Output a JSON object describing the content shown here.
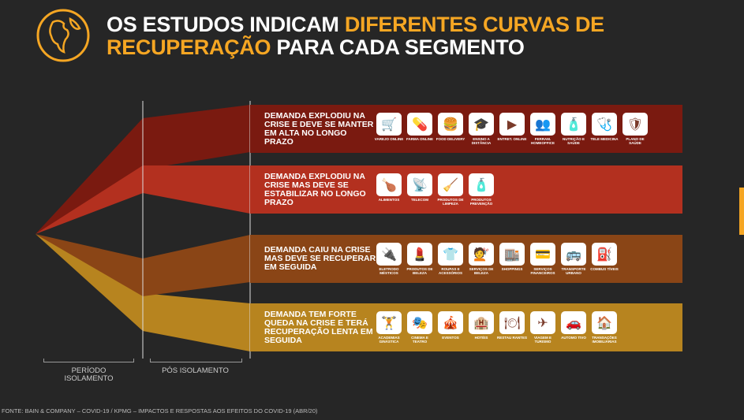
{
  "title": {
    "part1": "OS ESTUDOS INDICAM ",
    "highlight1": "DIFERENTES CURVAS DE",
    "highlight2": "RECUPERAÇÃO",
    "part2": " PARA CADA SEGMENTO"
  },
  "colors": {
    "accent": "#f5a623",
    "band1": "#7a1a10",
    "band2": "#b3301f",
    "band3": "#8a4516",
    "band4": "#b7841f"
  },
  "bands": [
    {
      "text": "Demanda explodiu na crise e deve se manter em alta no longo prazo",
      "icons": [
        "Varejo Online",
        "Farma Online",
        "Food Delivery",
        "Ensino a Distância",
        "Entret. Online",
        "Ferram. Homeoffice",
        "Nutrição e Saúde",
        "Tele Medicina",
        "Plano de Saúde"
      ],
      "glyphs": [
        "🛒",
        "💊",
        "🍔",
        "🎓",
        "▶",
        "👥",
        "🧴",
        "🩺",
        "🛡"
      ]
    },
    {
      "text": "Demanda explodiu na crise mas deve se estabilizar no longo prazo",
      "icons": [
        "Alimentos",
        "Telecom",
        "Produtos de Limpeza",
        "Produtos Prevenção"
      ],
      "glyphs": [
        "🍗",
        "📡",
        "🧹",
        "🧴"
      ]
    },
    {
      "text": "Demanda caiu na crise mas deve se recuperar em seguida",
      "icons": [
        "Eletrodo Mésticos",
        "Produtos de Beleza",
        "Roupas e Acessórios",
        "Serviços de Beleza",
        "Shoppings",
        "Serviços Financeiros",
        "Transporte Urbano",
        "Combus Tíveis"
      ],
      "glyphs": [
        "🔌",
        "💄",
        "👕",
        "💇",
        "🏬",
        "💳",
        "🚌",
        "⛽"
      ]
    },
    {
      "text": "Demanda tem forte queda na crise e terá recuperação lenta em seguida",
      "icons": [
        "Academias Ginástica",
        "Cinema e Teatro",
        "Eventos",
        "Hotéis",
        "Restau Rantes",
        "Viagem e Turismo",
        "Automo Tivo",
        "Transações Imobiliárias"
      ],
      "glyphs": [
        "🏋",
        "🎭",
        "🎪",
        "🏨",
        "🍽",
        "✈",
        "🚗",
        "🏠"
      ]
    }
  ],
  "periods": {
    "isolamento": "PERÍODO ISOLAMENTO",
    "pos": "PÓS ISOLAMENTO"
  },
  "source": "FONTE: BAIN & COMPANY – COVID-19 / KPMG – IMPACTOS E RESPOSTAS AOS EFEITOS DO COVID-19 (ABR/20)"
}
